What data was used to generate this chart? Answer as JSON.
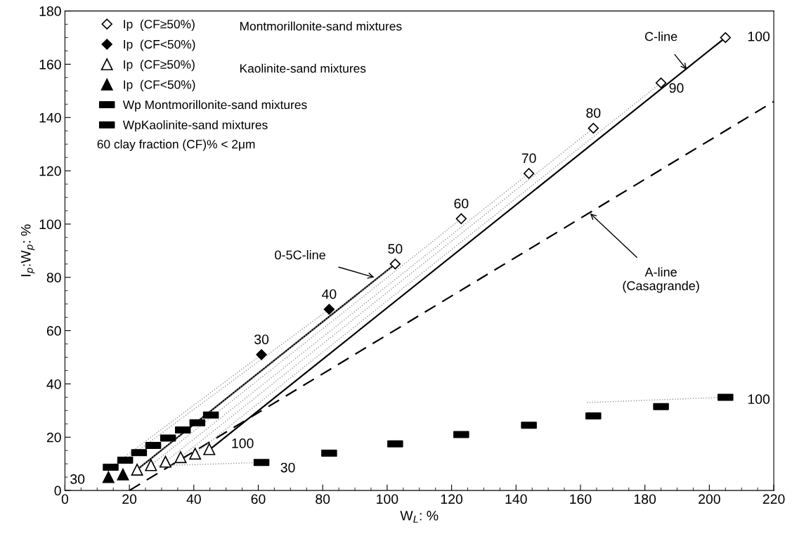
{
  "chart_data": {
    "type": "scatter",
    "xlabel": "W$_{L}$: %",
    "ylabel": "I$_{p}$:W$_{p}$: %",
    "xlim": [
      0,
      220
    ],
    "ylim": [
      0,
      180
    ],
    "xticks": [
      0,
      20,
      40,
      60,
      80,
      100,
      120,
      140,
      160,
      180,
      200,
      220
    ],
    "yticks": [
      0,
      20,
      40,
      60,
      80,
      100,
      120,
      140,
      160,
      180
    ],
    "grid": false,
    "legend": "top left",
    "series": [
      {
        "name": "Ip  (CF≥50%)",
        "marker": "diamond",
        "color": "#ffffff",
        "x": [
          102.5,
          123,
          144,
          164,
          185,
          205
        ],
        "values": [
          85,
          102,
          119,
          136,
          153,
          170
        ]
      },
      {
        "name": "Ip  (CF<50%)",
        "marker": "diamond",
        "color": "#000000",
        "x": [
          61,
          82
        ],
        "values": [
          51,
          68
        ]
      },
      {
        "name": "Ip  (CF≥50%)",
        "marker": "triangle",
        "color": "#ffffff",
        "x": [
          22.4,
          26.7,
          31.2,
          35.9,
          40.4,
          44.8
        ],
        "values": [
          7.8,
          9.5,
          10.8,
          12.5,
          13.8,
          15.5
        ]
      },
      {
        "name": "Ip  (CF<50%)",
        "marker": "triangle",
        "color": "#000000",
        "x": [
          13.5,
          18
        ],
        "values": [
          5,
          6
        ]
      },
      {
        "name": "Wp Montmorillonite-sand mixtures",
        "marker": "square",
        "color": "#000000",
        "x": [
          61,
          82,
          102.5,
          123,
          144,
          164,
          185,
          205
        ],
        "values": [
          10.5,
          14,
          17.5,
          21,
          24.5,
          28,
          31.5,
          35
        ]
      },
      {
        "name": "WpKaolinite-sand mixtures",
        "marker": "square",
        "color": "#000000",
        "x": [
          14.2,
          18.7,
          23,
          27.4,
          32,
          36.6,
          41.1,
          45.3
        ],
        "values": [
          8.7,
          11.4,
          14.2,
          16.9,
          19.7,
          22.7,
          25.4,
          28.3
        ]
      },
      {
        "type": "line",
        "line_style": "solid",
        "color": "#000000",
        "x": [
          22.9,
          102.5
        ],
        "values": [
          8.3,
          85
        ]
      },
      {
        "type": "line",
        "line_style": "solid",
        "color": "#000000",
        "x": [
          45.6,
          205
        ],
        "values": [
          16,
          170
        ]
      },
      {
        "type": "line",
        "line_style": "dashed",
        "color": "#000000",
        "x": [
          20,
          220
        ],
        "values": [
          0,
          146
        ]
      },
      {
        "type": "line",
        "line_style": "dotted",
        "color": "#999999",
        "x": [
          14.2,
          61
        ],
        "values": [
          8.7,
          51
        ]
      },
      {
        "type": "line",
        "line_style": "dotted",
        "color": "#999999",
        "x": [
          18.7,
          82
        ],
        "values": [
          11.4,
          68
        ]
      },
      {
        "type": "line",
        "line_style": "dotted",
        "color": "#999999",
        "x": [
          22.4,
          102.5
        ],
        "values": [
          7.8,
          85
        ]
      },
      {
        "type": "line",
        "line_style": "dotted",
        "color": "#999999",
        "x": [
          26.7,
          123
        ],
        "values": [
          9.5,
          102
        ]
      },
      {
        "type": "line",
        "line_style": "dotted",
        "color": "#999999",
        "x": [
          31.2,
          144
        ],
        "values": [
          10.8,
          119
        ]
      },
      {
        "type": "line",
        "line_style": "dotted",
        "color": "#999999",
        "x": [
          35.9,
          164
        ],
        "values": [
          12.5,
          136
        ]
      },
      {
        "type": "line",
        "line_style": "dotted",
        "color": "#999999",
        "x": [
          40.4,
          185
        ],
        "values": [
          13.8,
          153
        ]
      },
      {
        "type": "line",
        "line_style": "dotted",
        "color": "#999999",
        "x": [
          29,
          61
        ],
        "values": [
          9.3,
          10.5
        ]
      },
      {
        "type": "line",
        "line_style": "dotted",
        "color": "#999999",
        "x": [
          162,
          205
        ],
        "values": [
          33,
          35
        ]
      }
    ],
    "annotations": [
      "Montmorillonite-sand mixtures",
      "Kaolinite-sand mixtures",
      "60 clay fraction (CF)% < 2μm",
      {
        "text": "C-line",
        "x": 193,
        "y": 158
      },
      {
        "text": "0-5C-line",
        "x": 96,
        "y": 80
      },
      {
        "text": "A-line\n(Casagrande)",
        "x": 163,
        "y": 104
      },
      {
        "text": "30",
        "x": 61,
        "y": 51
      },
      {
        "text": "40",
        "x": 82,
        "y": 68
      },
      {
        "text": "50",
        "x": 102.5,
        "y": 85
      },
      {
        "text": "60",
        "x": 123,
        "y": 102
      },
      {
        "text": "70",
        "x": 144,
        "y": 119
      },
      {
        "text": "80",
        "x": 164,
        "y": 136
      },
      {
        "text": "90",
        "x": 185,
        "y": 153
      },
      {
        "text": "100",
        "x": 205,
        "y": 170
      },
      {
        "text": "30",
        "x": 13.5,
        "y": 5
      },
      {
        "text": "100",
        "x": 44.8,
        "y": 15.5
      },
      {
        "text": "30",
        "x": 61,
        "y": 10.5
      },
      {
        "text": "100",
        "x": 205,
        "y": 35
      }
    ]
  }
}
